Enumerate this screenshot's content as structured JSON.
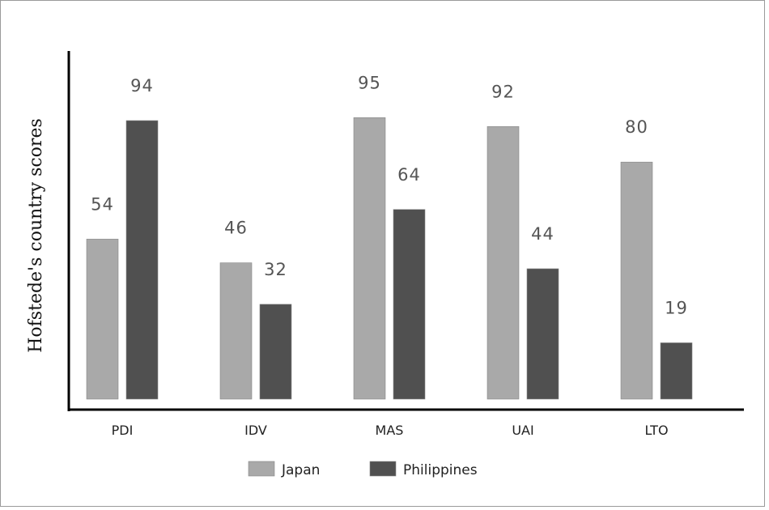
{
  "chart_data": {
    "type": "bar",
    "ylabel": "Hofstede's country scores",
    "xlabel": "",
    "categories": [
      "PDI",
      "IDV",
      "MAS",
      "UAI",
      "LTO"
    ],
    "series": [
      {
        "name": "Japan",
        "color": "#a9a9a9",
        "values": [
          54,
          46,
          95,
          92,
          80
        ]
      },
      {
        "name": "Philippines",
        "color": "#505050",
        "values": [
          94,
          32,
          64,
          44,
          19
        ]
      }
    ],
    "ylim": [
      0,
      100
    ],
    "grid": false,
    "legend": "bottom-center",
    "data_labels": true
  }
}
